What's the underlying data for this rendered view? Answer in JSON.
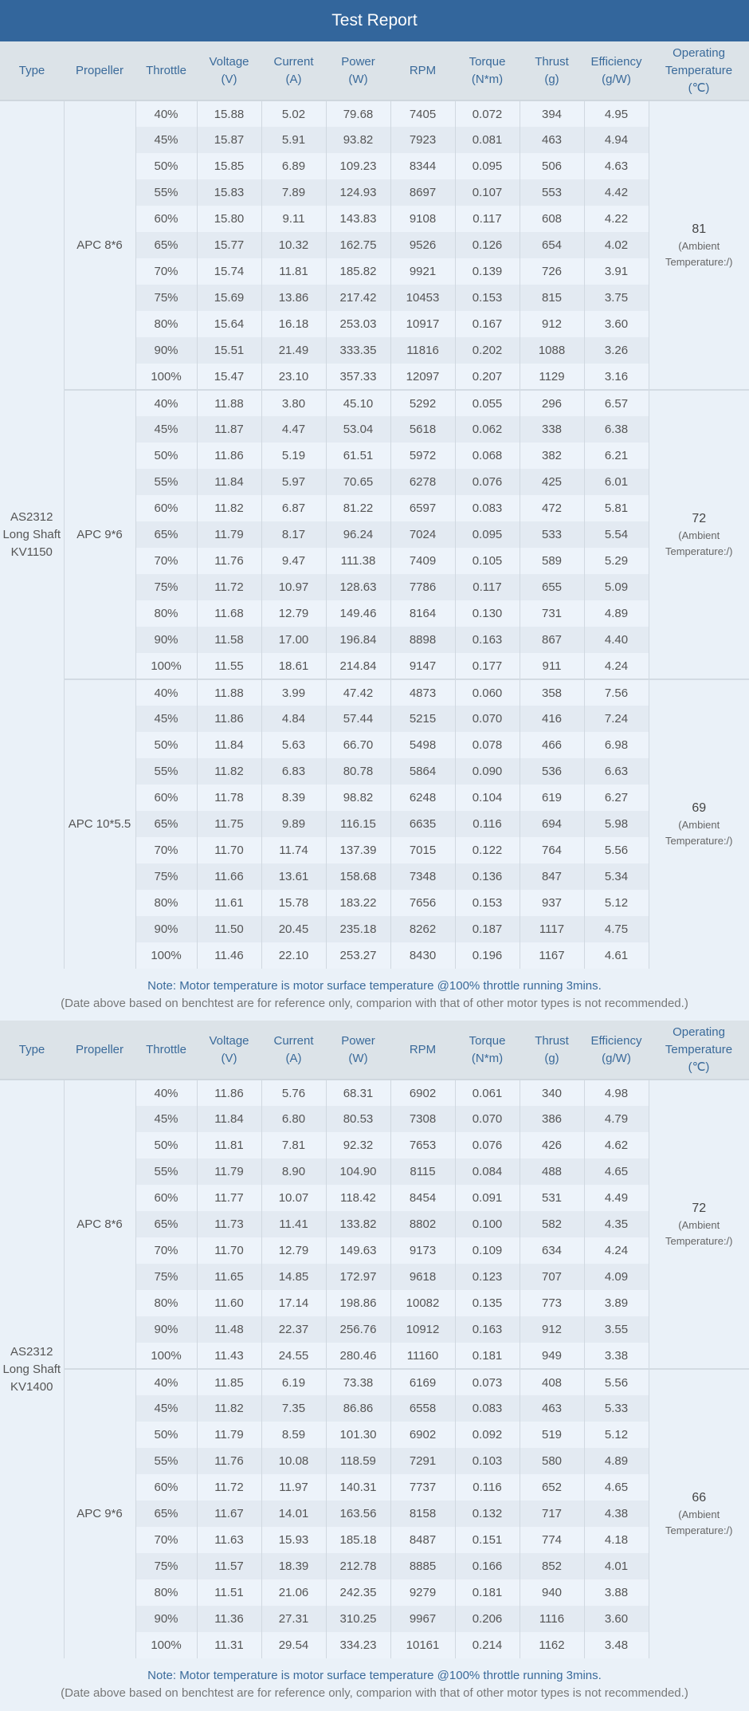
{
  "title": "Test Report",
  "colors": {
    "title_bar": "#33669c",
    "header_bg": "#dce3e8",
    "header_text": "#3a6a9a",
    "body_bg": "#eaf1f8"
  },
  "columns": [
    [
      "Type"
    ],
    [
      "Propeller"
    ],
    [
      "Throttle"
    ],
    [
      "Voltage",
      "(V)"
    ],
    [
      "Current",
      "(A)"
    ],
    [
      "Power",
      "(W)"
    ],
    [
      "RPM"
    ],
    [
      "Torque",
      "(N*m)"
    ],
    [
      "Thrust",
      "(g)"
    ],
    [
      "Efficiency",
      "(g/W)"
    ],
    [
      "Operating",
      "Temperature",
      "(℃)"
    ]
  ],
  "ambient_label": [
    "(Ambient",
    "Temperature:/)"
  ],
  "note_line1": "Note: Motor temperature is motor surface temperature @100% throttle running 3mins.",
  "note_line2": "(Date above based on benchtest are for reference only, comparion with that of other motor types is not recommended.)",
  "tables": [
    {
      "type": [
        "AS2312",
        "Long Shaft",
        "KV1150"
      ],
      "groups": [
        {
          "propeller": "APC 8*6",
          "temp": "81",
          "rows": [
            [
              "40%",
              "15.88",
              "5.02",
              "79.68",
              "7405",
              "0.072",
              "394",
              "4.95"
            ],
            [
              "45%",
              "15.87",
              "5.91",
              "93.82",
              "7923",
              "0.081",
              "463",
              "4.94"
            ],
            [
              "50%",
              "15.85",
              "6.89",
              "109.23",
              "8344",
              "0.095",
              "506",
              "4.63"
            ],
            [
              "55%",
              "15.83",
              "7.89",
              "124.93",
              "8697",
              "0.107",
              "553",
              "4.42"
            ],
            [
              "60%",
              "15.80",
              "9.11",
              "143.83",
              "9108",
              "0.117",
              "608",
              "4.22"
            ],
            [
              "65%",
              "15.77",
              "10.32",
              "162.75",
              "9526",
              "0.126",
              "654",
              "4.02"
            ],
            [
              "70%",
              "15.74",
              "11.81",
              "185.82",
              "9921",
              "0.139",
              "726",
              "3.91"
            ],
            [
              "75%",
              "15.69",
              "13.86",
              "217.42",
              "10453",
              "0.153",
              "815",
              "3.75"
            ],
            [
              "80%",
              "15.64",
              "16.18",
              "253.03",
              "10917",
              "0.167",
              "912",
              "3.60"
            ],
            [
              "90%",
              "15.51",
              "21.49",
              "333.35",
              "11816",
              "0.202",
              "1088",
              "3.26"
            ],
            [
              "100%",
              "15.47",
              "23.10",
              "357.33",
              "12097",
              "0.207",
              "1129",
              "3.16"
            ]
          ]
        },
        {
          "propeller": "APC 9*6",
          "temp": "72",
          "rows": [
            [
              "40%",
              "11.88",
              "3.80",
              "45.10",
              "5292",
              "0.055",
              "296",
              "6.57"
            ],
            [
              "45%",
              "11.87",
              "4.47",
              "53.04",
              "5618",
              "0.062",
              "338",
              "6.38"
            ],
            [
              "50%",
              "11.86",
              "5.19",
              "61.51",
              "5972",
              "0.068",
              "382",
              "6.21"
            ],
            [
              "55%",
              "11.84",
              "5.97",
              "70.65",
              "6278",
              "0.076",
              "425",
              "6.01"
            ],
            [
              "60%",
              "11.82",
              "6.87",
              "81.22",
              "6597",
              "0.083",
              "472",
              "5.81"
            ],
            [
              "65%",
              "11.79",
              "8.17",
              "96.24",
              "7024",
              "0.095",
              "533",
              "5.54"
            ],
            [
              "70%",
              "11.76",
              "9.47",
              "111.38",
              "7409",
              "0.105",
              "589",
              "5.29"
            ],
            [
              "75%",
              "11.72",
              "10.97",
              "128.63",
              "7786",
              "0.117",
              "655",
              "5.09"
            ],
            [
              "80%",
              "11.68",
              "12.79",
              "149.46",
              "8164",
              "0.130",
              "731",
              "4.89"
            ],
            [
              "90%",
              "11.58",
              "17.00",
              "196.84",
              "8898",
              "0.163",
              "867",
              "4.40"
            ],
            [
              "100%",
              "11.55",
              "18.61",
              "214.84",
              "9147",
              "0.177",
              "911",
              "4.24"
            ]
          ]
        },
        {
          "propeller": "APC 10*5.5",
          "temp": "69",
          "rows": [
            [
              "40%",
              "11.88",
              "3.99",
              "47.42",
              "4873",
              "0.060",
              "358",
              "7.56"
            ],
            [
              "45%",
              "11.86",
              "4.84",
              "57.44",
              "5215",
              "0.070",
              "416",
              "7.24"
            ],
            [
              "50%",
              "11.84",
              "5.63",
              "66.70",
              "5498",
              "0.078",
              "466",
              "6.98"
            ],
            [
              "55%",
              "11.82",
              "6.83",
              "80.78",
              "5864",
              "0.090",
              "536",
              "6.63"
            ],
            [
              "60%",
              "11.78",
              "8.39",
              "98.82",
              "6248",
              "0.104",
              "619",
              "6.27"
            ],
            [
              "65%",
              "11.75",
              "9.89",
              "116.15",
              "6635",
              "0.116",
              "694",
              "5.98"
            ],
            [
              "70%",
              "11.70",
              "11.74",
              "137.39",
              "7015",
              "0.122",
              "764",
              "5.56"
            ],
            [
              "75%",
              "11.66",
              "13.61",
              "158.68",
              "7348",
              "0.136",
              "847",
              "5.34"
            ],
            [
              "80%",
              "11.61",
              "15.78",
              "183.22",
              "7656",
              "0.153",
              "937",
              "5.12"
            ],
            [
              "90%",
              "11.50",
              "20.45",
              "235.18",
              "8262",
              "0.187",
              "1117",
              "4.75"
            ],
            [
              "100%",
              "11.46",
              "22.10",
              "253.27",
              "8430",
              "0.196",
              "1167",
              "4.61"
            ]
          ]
        }
      ]
    },
    {
      "type": [
        "AS2312",
        "Long Shaft",
        "KV1400"
      ],
      "groups": [
        {
          "propeller": "APC 8*6",
          "temp": "72",
          "rows": [
            [
              "40%",
              "11.86",
              "5.76",
              "68.31",
              "6902",
              "0.061",
              "340",
              "4.98"
            ],
            [
              "45%",
              "11.84",
              "6.80",
              "80.53",
              "7308",
              "0.070",
              "386",
              "4.79"
            ],
            [
              "50%",
              "11.81",
              "7.81",
              "92.32",
              "7653",
              "0.076",
              "426",
              "4.62"
            ],
            [
              "55%",
              "11.79",
              "8.90",
              "104.90",
              "8115",
              "0.084",
              "488",
              "4.65"
            ],
            [
              "60%",
              "11.77",
              "10.07",
              "118.42",
              "8454",
              "0.091",
              "531",
              "4.49"
            ],
            [
              "65%",
              "11.73",
              "11.41",
              "133.82",
              "8802",
              "0.100",
              "582",
              "4.35"
            ],
            [
              "70%",
              "11.70",
              "12.79",
              "149.63",
              "9173",
              "0.109",
              "634",
              "4.24"
            ],
            [
              "75%",
              "11.65",
              "14.85",
              "172.97",
              "9618",
              "0.123",
              "707",
              "4.09"
            ],
            [
              "80%",
              "11.60",
              "17.14",
              "198.86",
              "10082",
              "0.135",
              "773",
              "3.89"
            ],
            [
              "90%",
              "11.48",
              "22.37",
              "256.76",
              "10912",
              "0.163",
              "912",
              "3.55"
            ],
            [
              "100%",
              "11.43",
              "24.55",
              "280.46",
              "11160",
              "0.181",
              "949",
              "3.38"
            ]
          ]
        },
        {
          "propeller": "APC 9*6",
          "temp": "66",
          "rows": [
            [
              "40%",
              "11.85",
              "6.19",
              "73.38",
              "6169",
              "0.073",
              "408",
              "5.56"
            ],
            [
              "45%",
              "11.82",
              "7.35",
              "86.86",
              "6558",
              "0.083",
              "463",
              "5.33"
            ],
            [
              "50%",
              "11.79",
              "8.59",
              "101.30",
              "6902",
              "0.092",
              "519",
              "5.12"
            ],
            [
              "55%",
              "11.76",
              "10.08",
              "118.59",
              "7291",
              "0.103",
              "580",
              "4.89"
            ],
            [
              "60%",
              "11.72",
              "11.97",
              "140.31",
              "7737",
              "0.116",
              "652",
              "4.65"
            ],
            [
              "65%",
              "11.67",
              "14.01",
              "163.56",
              "8158",
              "0.132",
              "717",
              "4.38"
            ],
            [
              "70%",
              "11.63",
              "15.93",
              "185.18",
              "8487",
              "0.151",
              "774",
              "4.18"
            ],
            [
              "75%",
              "11.57",
              "18.39",
              "212.78",
              "8885",
              "0.166",
              "852",
              "4.01"
            ],
            [
              "80%",
              "11.51",
              "21.06",
              "242.35",
              "9279",
              "0.181",
              "940",
              "3.88"
            ],
            [
              "90%",
              "11.36",
              "27.31",
              "310.25",
              "9967",
              "0.206",
              "1116",
              "3.60"
            ],
            [
              "100%",
              "11.31",
              "29.54",
              "334.23",
              "10161",
              "0.214",
              "1162",
              "3.48"
            ]
          ]
        }
      ]
    }
  ]
}
